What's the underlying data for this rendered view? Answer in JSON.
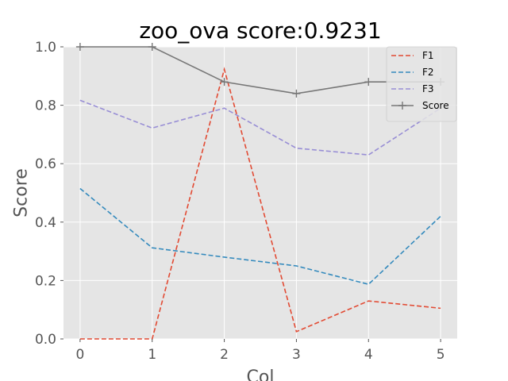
{
  "chart_data": {
    "type": "line",
    "title": "zoo_ova score:0.9231",
    "xlabel": "Col",
    "ylabel": "Score",
    "xlim": [
      -0.23,
      5.23
    ],
    "ylim": [
      0.0,
      1.0
    ],
    "xticks": [
      "0",
      "1",
      "2",
      "3",
      "4",
      "5"
    ],
    "yticks": [
      "0.0",
      "0.2",
      "0.4",
      "0.6",
      "0.8",
      "1.0"
    ],
    "x": [
      0,
      1,
      2,
      3,
      4,
      5
    ],
    "grid": true,
    "legend_position": "top-right",
    "series": [
      {
        "name": "F1",
        "style": "dashed",
        "marker": "none",
        "color": "#E24A33",
        "values": [
          0.0,
          0.0,
          0.923,
          0.025,
          0.13,
          0.105
        ]
      },
      {
        "name": "F2",
        "style": "dashed",
        "marker": "none",
        "color": "#348ABD",
        "values": [
          0.515,
          0.312,
          0.28,
          0.25,
          0.187,
          0.42
        ]
      },
      {
        "name": "F3",
        "style": "dashed",
        "marker": "none",
        "color": "#988ED5",
        "values": [
          0.817,
          0.722,
          0.79,
          0.653,
          0.63,
          0.79
        ]
      },
      {
        "name": "Score",
        "style": "solid",
        "marker": "plus",
        "color": "#777777",
        "values": [
          1.0,
          1.0,
          0.88,
          0.84,
          0.88,
          0.88
        ]
      }
    ]
  }
}
